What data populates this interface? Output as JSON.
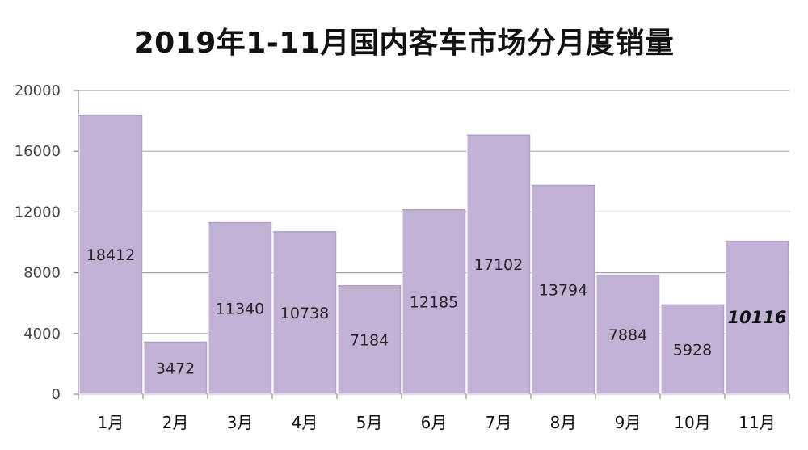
{
  "chart_data": {
    "type": "bar",
    "title": "2019年1-11月国内客车市场分月度销量",
    "xlabel": "",
    "ylabel": "",
    "categories": [
      "1月",
      "2月",
      "3月",
      "4月",
      "5月",
      "6月",
      "7月",
      "8月",
      "9月",
      "10月",
      "11月"
    ],
    "values": [
      18412,
      3472,
      11340,
      10738,
      7184,
      12185,
      17102,
      13794,
      7884,
      5928,
      10116
    ],
    "ylim": [
      0,
      20000
    ],
    "yticks": [
      0,
      4000,
      8000,
      12000,
      16000,
      20000
    ],
    "grid": true,
    "legend": "none",
    "bar_color": "#c2b3d6",
    "emphasized_category": "11月"
  }
}
